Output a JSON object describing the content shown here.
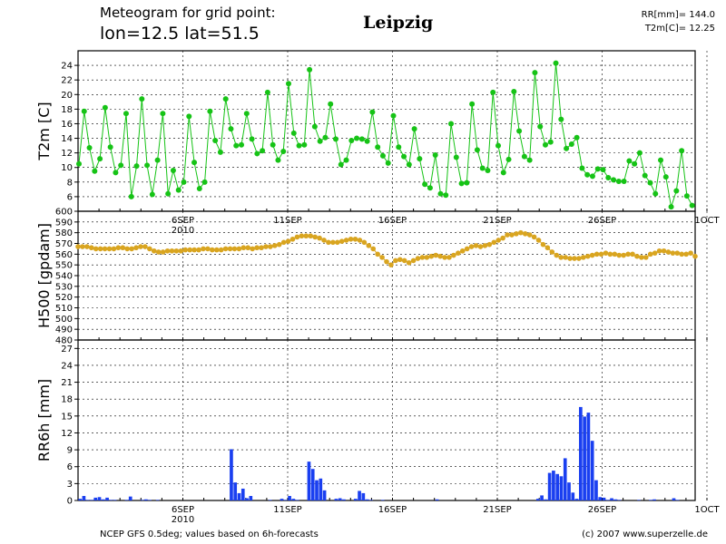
{
  "header": {
    "line1": "Meteogram for grid point:",
    "line2": "lon=12.5  lat=51.5",
    "location": "Leipzig",
    "rr_total": "RR[mm]= 144.0",
    "t2m_mean": "T2m[C]= 12.25"
  },
  "footer": {
    "source": "NCEP GFS 0.5deg; values based on 6h-forecasts",
    "copyright": "(c) 2007 www.superzelle.de"
  },
  "colors": {
    "t2m": "#16c316",
    "h500": "#d9a520",
    "rr6h": "#1a3ff0",
    "grid": "#000000"
  },
  "chart_data": [
    {
      "type": "line",
      "ylabel": "T2m [C]",
      "ylim": [
        4,
        26
      ],
      "yticks": [
        6,
        8,
        10,
        12,
        14,
        16,
        18,
        20,
        22,
        24
      ],
      "x_date_labels": [
        "6SEP",
        "11SEP",
        "16SEP",
        "21SEP",
        "26SEP",
        "1OCT"
      ],
      "year_label": "2010",
      "grid": "dashed",
      "values": [
        10.5,
        17.7,
        12.7,
        9.5,
        11.2,
        18.2,
        12.8,
        9.3,
        10.3,
        17.4,
        6.0,
        10.2,
        19.4,
        10.3,
        6.3,
        11.0,
        17.4,
        6.4,
        9.6,
        6.9,
        8.0,
        17.0,
        10.7,
        7.1,
        8.0,
        17.7,
        13.7,
        12.1,
        19.4,
        15.3,
        13.0,
        13.1,
        17.4,
        13.9,
        11.9,
        12.3,
        20.3,
        13.1,
        11.0,
        12.2,
        21.5,
        14.7,
        13.0,
        13.1,
        23.4,
        15.6,
        13.6,
        14.1,
        18.7,
        13.9,
        10.4,
        11.0,
        13.7,
        14.0,
        13.9,
        13.6,
        17.6,
        12.8,
        11.6,
        10.6,
        17.1,
        12.8,
        11.5,
        10.4,
        15.3,
        11.2,
        7.7,
        7.2,
        11.7,
        6.4,
        6.2,
        16.0,
        11.4,
        7.8,
        7.9,
        18.7,
        12.4,
        9.9,
        9.6,
        20.3,
        13.0,
        9.3,
        11.1,
        20.4,
        15.0,
        11.5,
        11.0,
        23.0,
        15.6,
        13.1,
        13.5,
        24.3,
        16.6,
        12.6,
        13.2,
        14.1,
        9.9,
        9.0,
        8.8,
        9.8,
        9.7,
        8.6,
        8.3,
        8.1,
        8.1,
        10.9,
        10.5,
        12.0,
        8.9,
        7.9,
        6.4,
        11.0,
        8.7,
        4.6,
        6.8,
        12.3,
        6.1,
        4.8
      ]
    },
    {
      "type": "line",
      "ylabel": "H500 [gpdam]",
      "ylim": [
        480,
        600
      ],
      "yticks": [
        480,
        490,
        500,
        510,
        520,
        530,
        540,
        550,
        560,
        570,
        580,
        590,
        600
      ],
      "grid": "dashed",
      "values": [
        567,
        567,
        567,
        566,
        565,
        565,
        565,
        565,
        565,
        566,
        566,
        565,
        565,
        566,
        567,
        567,
        565,
        563,
        562,
        562,
        563,
        563,
        563,
        563,
        564,
        564,
        564,
        564,
        565,
        565,
        564,
        564,
        564,
        565,
        565,
        565,
        565,
        566,
        566,
        565,
        566,
        566,
        567,
        567,
        568,
        569,
        571,
        572,
        574,
        576,
        577,
        577,
        577,
        576,
        575,
        573,
        571,
        571,
        571,
        572,
        573,
        574,
        574,
        573,
        571,
        568,
        565,
        560,
        557,
        553,
        550,
        554,
        555,
        554,
        552,
        554,
        556,
        557,
        557,
        558,
        559,
        558,
        557,
        557,
        559,
        561,
        563,
        565,
        567,
        568,
        567,
        568,
        569,
        571,
        573,
        575,
        578,
        578,
        579,
        580,
        579,
        578,
        576,
        573,
        569,
        566,
        562,
        559,
        557,
        557,
        556,
        556,
        556,
        557,
        558,
        559,
        560,
        560,
        561,
        560,
        560,
        559,
        559,
        560,
        560,
        558,
        557,
        557,
        560,
        561,
        563,
        563,
        562,
        561,
        561,
        560,
        560,
        561,
        558
      ]
    },
    {
      "type": "bar",
      "ylabel": "RR6h [mm]",
      "ylim": [
        0,
        28.5
      ],
      "yticks": [
        0,
        3,
        6,
        9,
        12,
        15,
        18,
        21,
        24,
        27
      ],
      "x_date_labels": [
        "6SEP",
        "11SEP",
        "16SEP",
        "21SEP",
        "26SEP",
        "1OCT"
      ],
      "year_label": "2010",
      "grid": "dashed",
      "values": [
        0.3,
        0.8,
        0.1,
        0.1,
        0.5,
        0.6,
        0.2,
        0.5,
        0.1,
        0.1,
        0,
        0,
        0.1,
        0.7,
        0,
        0,
        0.1,
        0.2,
        0.1,
        0,
        0.1,
        0,
        0,
        0,
        0,
        0,
        0,
        0,
        0,
        0,
        0,
        0,
        0,
        0,
        0,
        0,
        0,
        0,
        0,
        9.1,
        3.2,
        1.3,
        2.1,
        0.4,
        0.8,
        0,
        0,
        0,
        0,
        0.1,
        0,
        0,
        0.3,
        0.1,
        0.8,
        0.3,
        0.1,
        0,
        0,
        6.9,
        5.6,
        3.6,
        3.9,
        1.8,
        0,
        0,
        0.3,
        0.4,
        0.2,
        0,
        0,
        0.3,
        1.7,
        1.3,
        0.2,
        0.1,
        0,
        0,
        0.1,
        0,
        0,
        0,
        0,
        0,
        0,
        0,
        0,
        0,
        0,
        0,
        0,
        0,
        0.2,
        0,
        0,
        0,
        0,
        0,
        0,
        0,
        0,
        0,
        0,
        0,
        0,
        0,
        0,
        0,
        0,
        0,
        0,
        0,
        0,
        0,
        0,
        0,
        0,
        0,
        0.3,
        0.9,
        0.2,
        4.9,
        5.3,
        4.7,
        4.3,
        7.5,
        3.2,
        1.4,
        0.3,
        16.6,
        14.9,
        15.6,
        10.6,
        3.6,
        0.6,
        0.5,
        0.1,
        0.4,
        0.2,
        0.1,
        0,
        0,
        0,
        0,
        0.1,
        0,
        0,
        0.1,
        0.2,
        0,
        0,
        0,
        0,
        0.4,
        0.1,
        0,
        0,
        0,
        0
      ]
    }
  ]
}
